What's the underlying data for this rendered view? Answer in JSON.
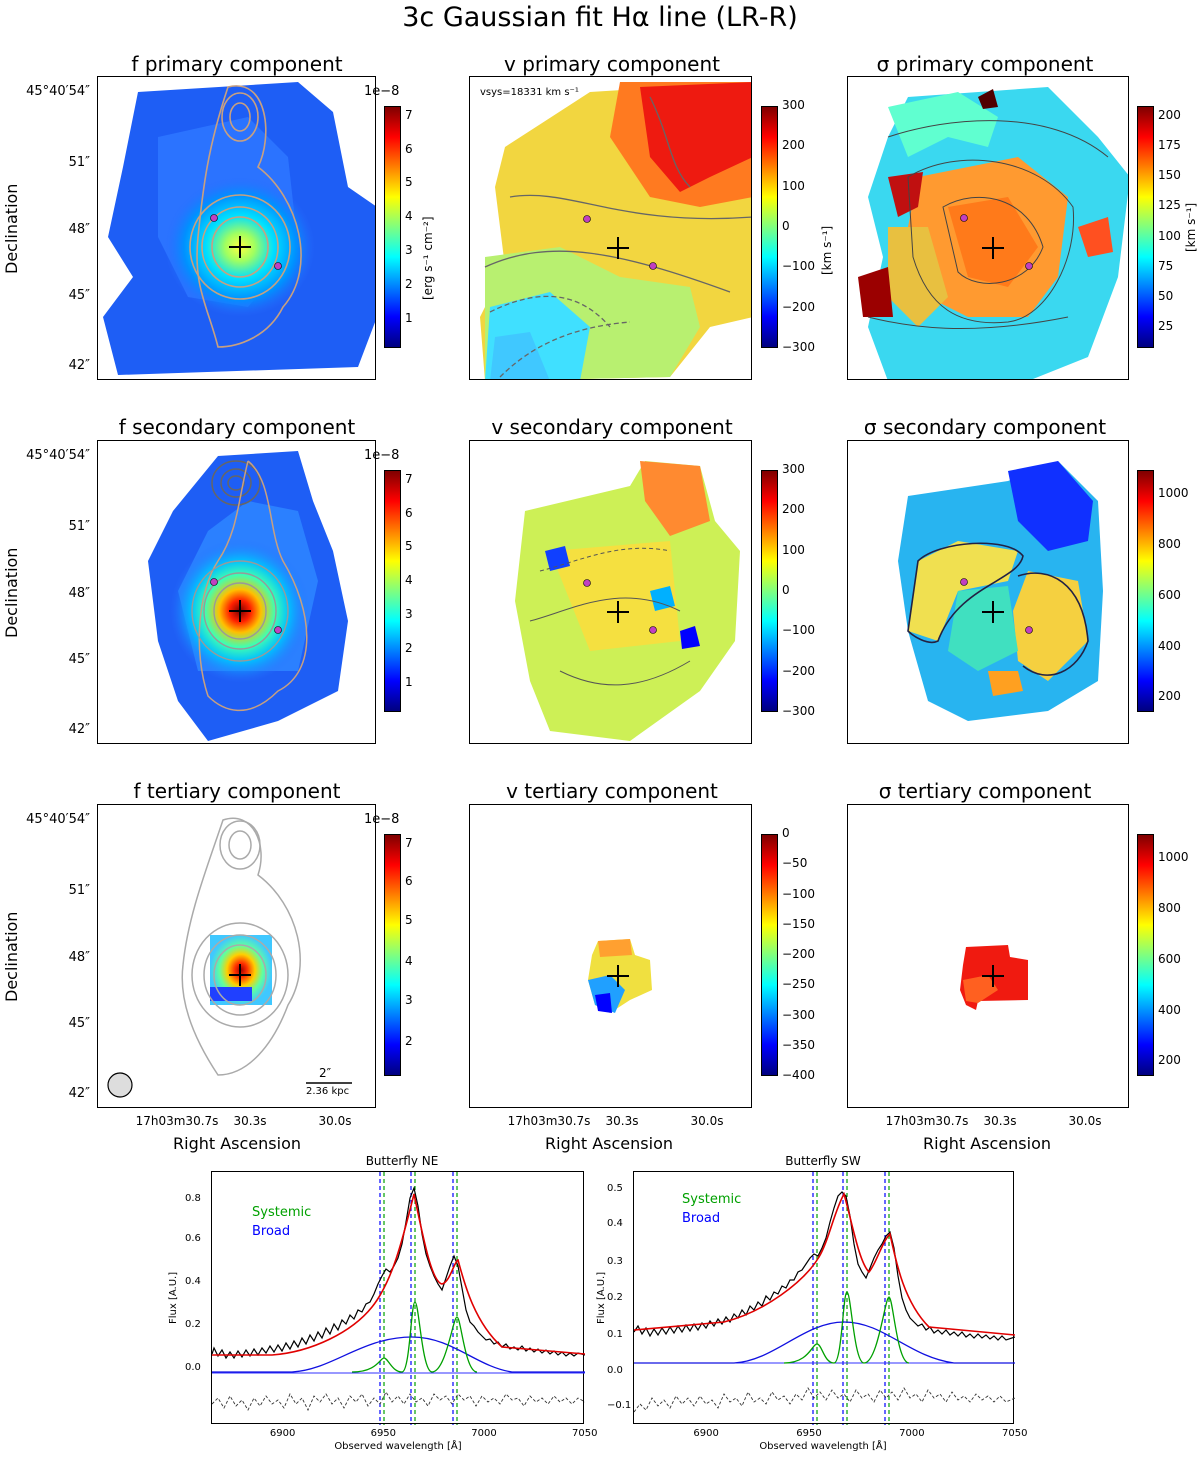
{
  "figure_title": "3c Gaussian fit Hα line (LR-R)",
  "colors": {
    "jet": [
      "#00007f",
      "#0000ff",
      "#007fff",
      "#00ffff",
      "#7fff7f",
      "#ffff00",
      "#ff7f00",
      "#ff0000",
      "#7f0000"
    ],
    "contour_primary": "#c8a080",
    "contour_gray": "#9a9a9a",
    "marker": "#c040c0"
  },
  "axes": {
    "declination_label": "Declination",
    "ra_label": "Right Ascension",
    "dec_ticks": [
      "45°40′54″",
      "51″",
      "48″",
      "45″",
      "42″"
    ],
    "ra_ticks": [
      "17h03m30.7s",
      "30.3s",
      "30.0s"
    ]
  },
  "panels": {
    "f1": {
      "title": "f primary component",
      "multiplier": "1e−8",
      "unit": "[erg s⁻¹ cm⁻²]",
      "ticks": [
        "7",
        "6",
        "5",
        "4",
        "3",
        "2",
        "1"
      ]
    },
    "v1": {
      "title": "v primary component",
      "note": "vsys=18331 km s⁻¹",
      "unit": "[km s⁻¹]",
      "ticks": [
        "300",
        "200",
        "100",
        "0",
        "−100",
        "−200",
        "−300"
      ]
    },
    "s1": {
      "title": "σ primary component",
      "unit": "[km s⁻¹]",
      "ticks": [
        "200",
        "175",
        "150",
        "125",
        "100",
        "75",
        "50",
        "25"
      ]
    },
    "f2": {
      "title": "f secondary component",
      "multiplier": "1e−8",
      "ticks": [
        "7",
        "6",
        "5",
        "4",
        "3",
        "2",
        "1"
      ]
    },
    "v2": {
      "title": "v secondary component",
      "ticks": [
        "300",
        "200",
        "100",
        "0",
        "−100",
        "−200",
        "−300"
      ]
    },
    "s2": {
      "title": "σ secondary component",
      "ticks": [
        "1000",
        "800",
        "600",
        "400",
        "200"
      ]
    },
    "f3": {
      "title": "f tertiary component",
      "multiplier": "1e−8",
      "ticks": [
        "7",
        "6",
        "5",
        "4",
        "3",
        "2"
      ],
      "scalebar_top": "2″",
      "scalebar_bottom": "2.36 kpc"
    },
    "v3": {
      "title": "v tertiary component",
      "ticks": [
        "0",
        "−50",
        "−100",
        "−150",
        "−200",
        "−250",
        "−300",
        "−350",
        "−400"
      ]
    },
    "s3": {
      "title": "σ tertiary component",
      "ticks": [
        "1000",
        "800",
        "600",
        "400",
        "200"
      ]
    }
  },
  "spectra": {
    "ne": {
      "title": "Butterfly NE",
      "legend_systemic": "Systemic",
      "legend_broad": "Broad",
      "yticks": [
        "0.8",
        "0.6",
        "0.4",
        "0.2",
        "0.0"
      ],
      "xticks": [
        "6900",
        "6950",
        "7000",
        "7050"
      ],
      "ylabel": "Flux [A.U.]",
      "xlabel": "Observed wavelength [Å]"
    },
    "sw": {
      "title": "Butterfly SW",
      "legend_systemic": "Systemic",
      "legend_broad": "Broad",
      "yticks": [
        "0.5",
        "0.4",
        "0.3",
        "0.2",
        "0.1",
        "0.0",
        "−0.1"
      ],
      "xticks": [
        "6900",
        "6950",
        "7000",
        "7050"
      ],
      "ylabel": "Flux [A.U.]",
      "xlabel": "Observed wavelength [Å]"
    }
  }
}
